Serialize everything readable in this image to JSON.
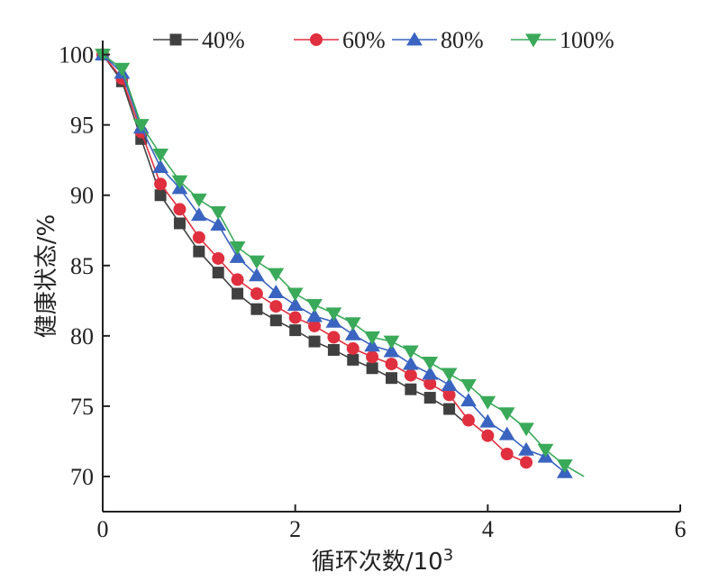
{
  "chart_data": {
    "type": "line",
    "title": "",
    "xlabel": "循环次数/10",
    "xlabel_sup": "3",
    "ylabel": "健康状态/%",
    "xlim": [
      0,
      6
    ],
    "ylim": [
      67.5,
      101
    ],
    "x_ticks": [
      0,
      2,
      4,
      6
    ],
    "x_tick_labels": [
      "0",
      "2",
      "4",
      "6"
    ],
    "y_ticks": [
      70,
      75,
      80,
      85,
      90,
      95,
      100
    ],
    "y_tick_labels": [
      "70",
      "75",
      "80",
      "85",
      "90",
      "95",
      "100"
    ],
    "grid": false,
    "legend_position": "top",
    "series": [
      {
        "name": "40%",
        "color": "#404040",
        "marker": "square",
        "x": [
          0,
          0.2,
          0.4,
          0.6,
          0.8,
          1.0,
          1.2,
          1.4,
          1.6,
          1.8,
          2.0,
          2.2,
          2.4,
          2.6,
          2.8,
          3.0,
          3.2,
          3.4,
          3.6
        ],
        "y": [
          100,
          98.1,
          94.0,
          90.0,
          88.0,
          86.0,
          84.5,
          83.0,
          81.9,
          81.1,
          80.4,
          79.6,
          79.0,
          78.3,
          77.7,
          77.0,
          76.2,
          75.6,
          74.8
        ],
        "line_x": [
          0,
          0.2,
          0.4,
          0.6,
          0.8,
          1.0,
          1.2,
          1.4,
          1.6,
          1.8,
          2.0,
          2.2,
          2.4,
          2.6,
          2.8,
          3.0,
          3.2,
          3.4,
          3.6,
          3.75
        ],
        "line_y": [
          100,
          98.1,
          94.0,
          90.0,
          88.0,
          86.0,
          84.5,
          83.0,
          81.9,
          81.1,
          80.4,
          79.6,
          79.0,
          78.3,
          77.7,
          77.0,
          76.2,
          75.6,
          74.8,
          73.9
        ]
      },
      {
        "name": "60%",
        "color": "#e03040",
        "marker": "circle",
        "x": [
          0,
          0.2,
          0.4,
          0.6,
          0.8,
          1.0,
          1.2,
          1.4,
          1.6,
          1.8,
          2.0,
          2.2,
          2.4,
          2.6,
          2.8,
          3.0,
          3.2,
          3.4,
          3.6,
          3.8,
          4.0,
          4.2,
          4.4
        ],
        "y": [
          100,
          98.3,
          94.5,
          90.8,
          89.0,
          87.0,
          85.5,
          84.0,
          83.0,
          82.1,
          81.3,
          80.7,
          79.9,
          79.1,
          78.5,
          78.0,
          77.2,
          76.6,
          75.8,
          74.0,
          72.9,
          71.6,
          71.0
        ]
      },
      {
        "name": "80%",
        "color": "#3a64c0",
        "marker": "triangle-up",
        "x": [
          0,
          0.2,
          0.4,
          0.6,
          0.8,
          1.0,
          1.2,
          1.4,
          1.6,
          1.8,
          2.0,
          2.2,
          2.4,
          2.6,
          2.8,
          3.0,
          3.2,
          3.4,
          3.6,
          3.8,
          4.0,
          4.2,
          4.4,
          4.6,
          4.8
        ],
        "y": [
          100,
          98.7,
          94.8,
          92.0,
          90.5,
          88.6,
          87.9,
          85.6,
          84.3,
          83.1,
          82.2,
          81.4,
          81.0,
          80.1,
          79.3,
          78.9,
          78.0,
          77.3,
          76.5,
          75.4,
          73.9,
          73.0,
          71.9,
          71.4,
          70.3
        ]
      },
      {
        "name": "100%",
        "color": "#3aaa5a",
        "marker": "triangle-down",
        "x": [
          0,
          0.2,
          0.4,
          0.6,
          0.8,
          1.0,
          1.2,
          1.4,
          1.6,
          1.8,
          2.0,
          2.2,
          2.4,
          2.6,
          2.8,
          3.0,
          3.2,
          3.4,
          3.6,
          3.8,
          4.0,
          4.2,
          4.4,
          4.6,
          4.8
        ],
        "y": [
          100,
          99.0,
          95.0,
          92.9,
          91.0,
          89.7,
          88.8,
          86.3,
          85.3,
          84.4,
          83.0,
          82.2,
          81.6,
          80.9,
          79.9,
          79.6,
          78.9,
          78.1,
          77.3,
          76.5,
          75.3,
          74.5,
          73.4,
          71.9,
          70.8
        ],
        "line_x": [
          0,
          0.2,
          0.4,
          0.6,
          0.8,
          1.0,
          1.2,
          1.4,
          1.6,
          1.8,
          2.0,
          2.2,
          2.4,
          2.6,
          2.8,
          3.0,
          3.2,
          3.4,
          3.6,
          3.8,
          4.0,
          4.2,
          4.4,
          4.6,
          4.8,
          5.0
        ],
        "line_y": [
          100,
          99.0,
          95.0,
          92.9,
          91.0,
          89.7,
          88.8,
          86.3,
          85.3,
          84.4,
          83.0,
          82.2,
          81.6,
          80.9,
          79.9,
          79.6,
          78.9,
          78.1,
          77.3,
          76.5,
          75.3,
          74.5,
          73.4,
          71.9,
          70.8,
          70.0
        ]
      }
    ]
  }
}
